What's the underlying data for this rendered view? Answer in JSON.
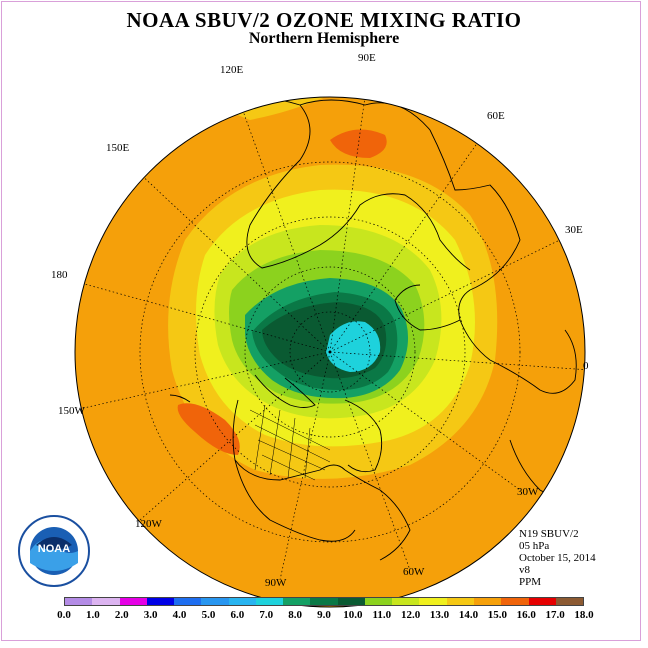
{
  "title": "NOAA SBUV/2 OZONE MIXING RATIO",
  "subtitle": "Northern Hemisphere",
  "longitude_labels": {
    "l90e": "90E",
    "l120e": "120E",
    "l60e": "60E",
    "l150e": "150E",
    "l30e": "30E",
    "l180": "180",
    "l0": "0",
    "l150w": "150W",
    "l30w": "30W",
    "l120w": "120W",
    "l60w": "60W",
    "l90w": "90W"
  },
  "info": {
    "instrument": "N19 SBUV/2",
    "pressure": "05 hPa",
    "date": "October 15, 2014",
    "version": "v8",
    "units": "PPM"
  },
  "logo": {
    "text": "NOAA"
  },
  "colorbar": {
    "ticks": [
      "0.0",
      "1.0",
      "2.0",
      "3.0",
      "4.0",
      "5.0",
      "6.0",
      "7.0",
      "8.0",
      "9.0",
      "10.0",
      "11.0",
      "12.0",
      "13.0",
      "14.0",
      "15.0",
      "16.0",
      "17.0",
      "18.0"
    ],
    "colors": [
      "#b48ce6",
      "#dcb4f0",
      "#e600e6",
      "#0000e6",
      "#1e6ef0",
      "#2896f0",
      "#28b4f0",
      "#1ed2dc",
      "#14a064",
      "#0a7846",
      "#0a5a32",
      "#8cd21e",
      "#c8e61e",
      "#f0f01e",
      "#f5c814",
      "#f5a00a",
      "#f0640a",
      "#e60000",
      "#8c5a32"
    ]
  },
  "colors": {
    "ocean_base": "#f5a00a",
    "band_14_15": "#f5c814",
    "band_13_14": "#f0f01e",
    "band_12_13": "#c8e61e",
    "band_11_12": "#8cd21e",
    "band_10_11": "#14a064",
    "band_9_10": "#0a7846",
    "band_8_9": "#0a5a32",
    "band_7_8": "#1ed2dc",
    "band_15_16": "#f0640a"
  }
}
